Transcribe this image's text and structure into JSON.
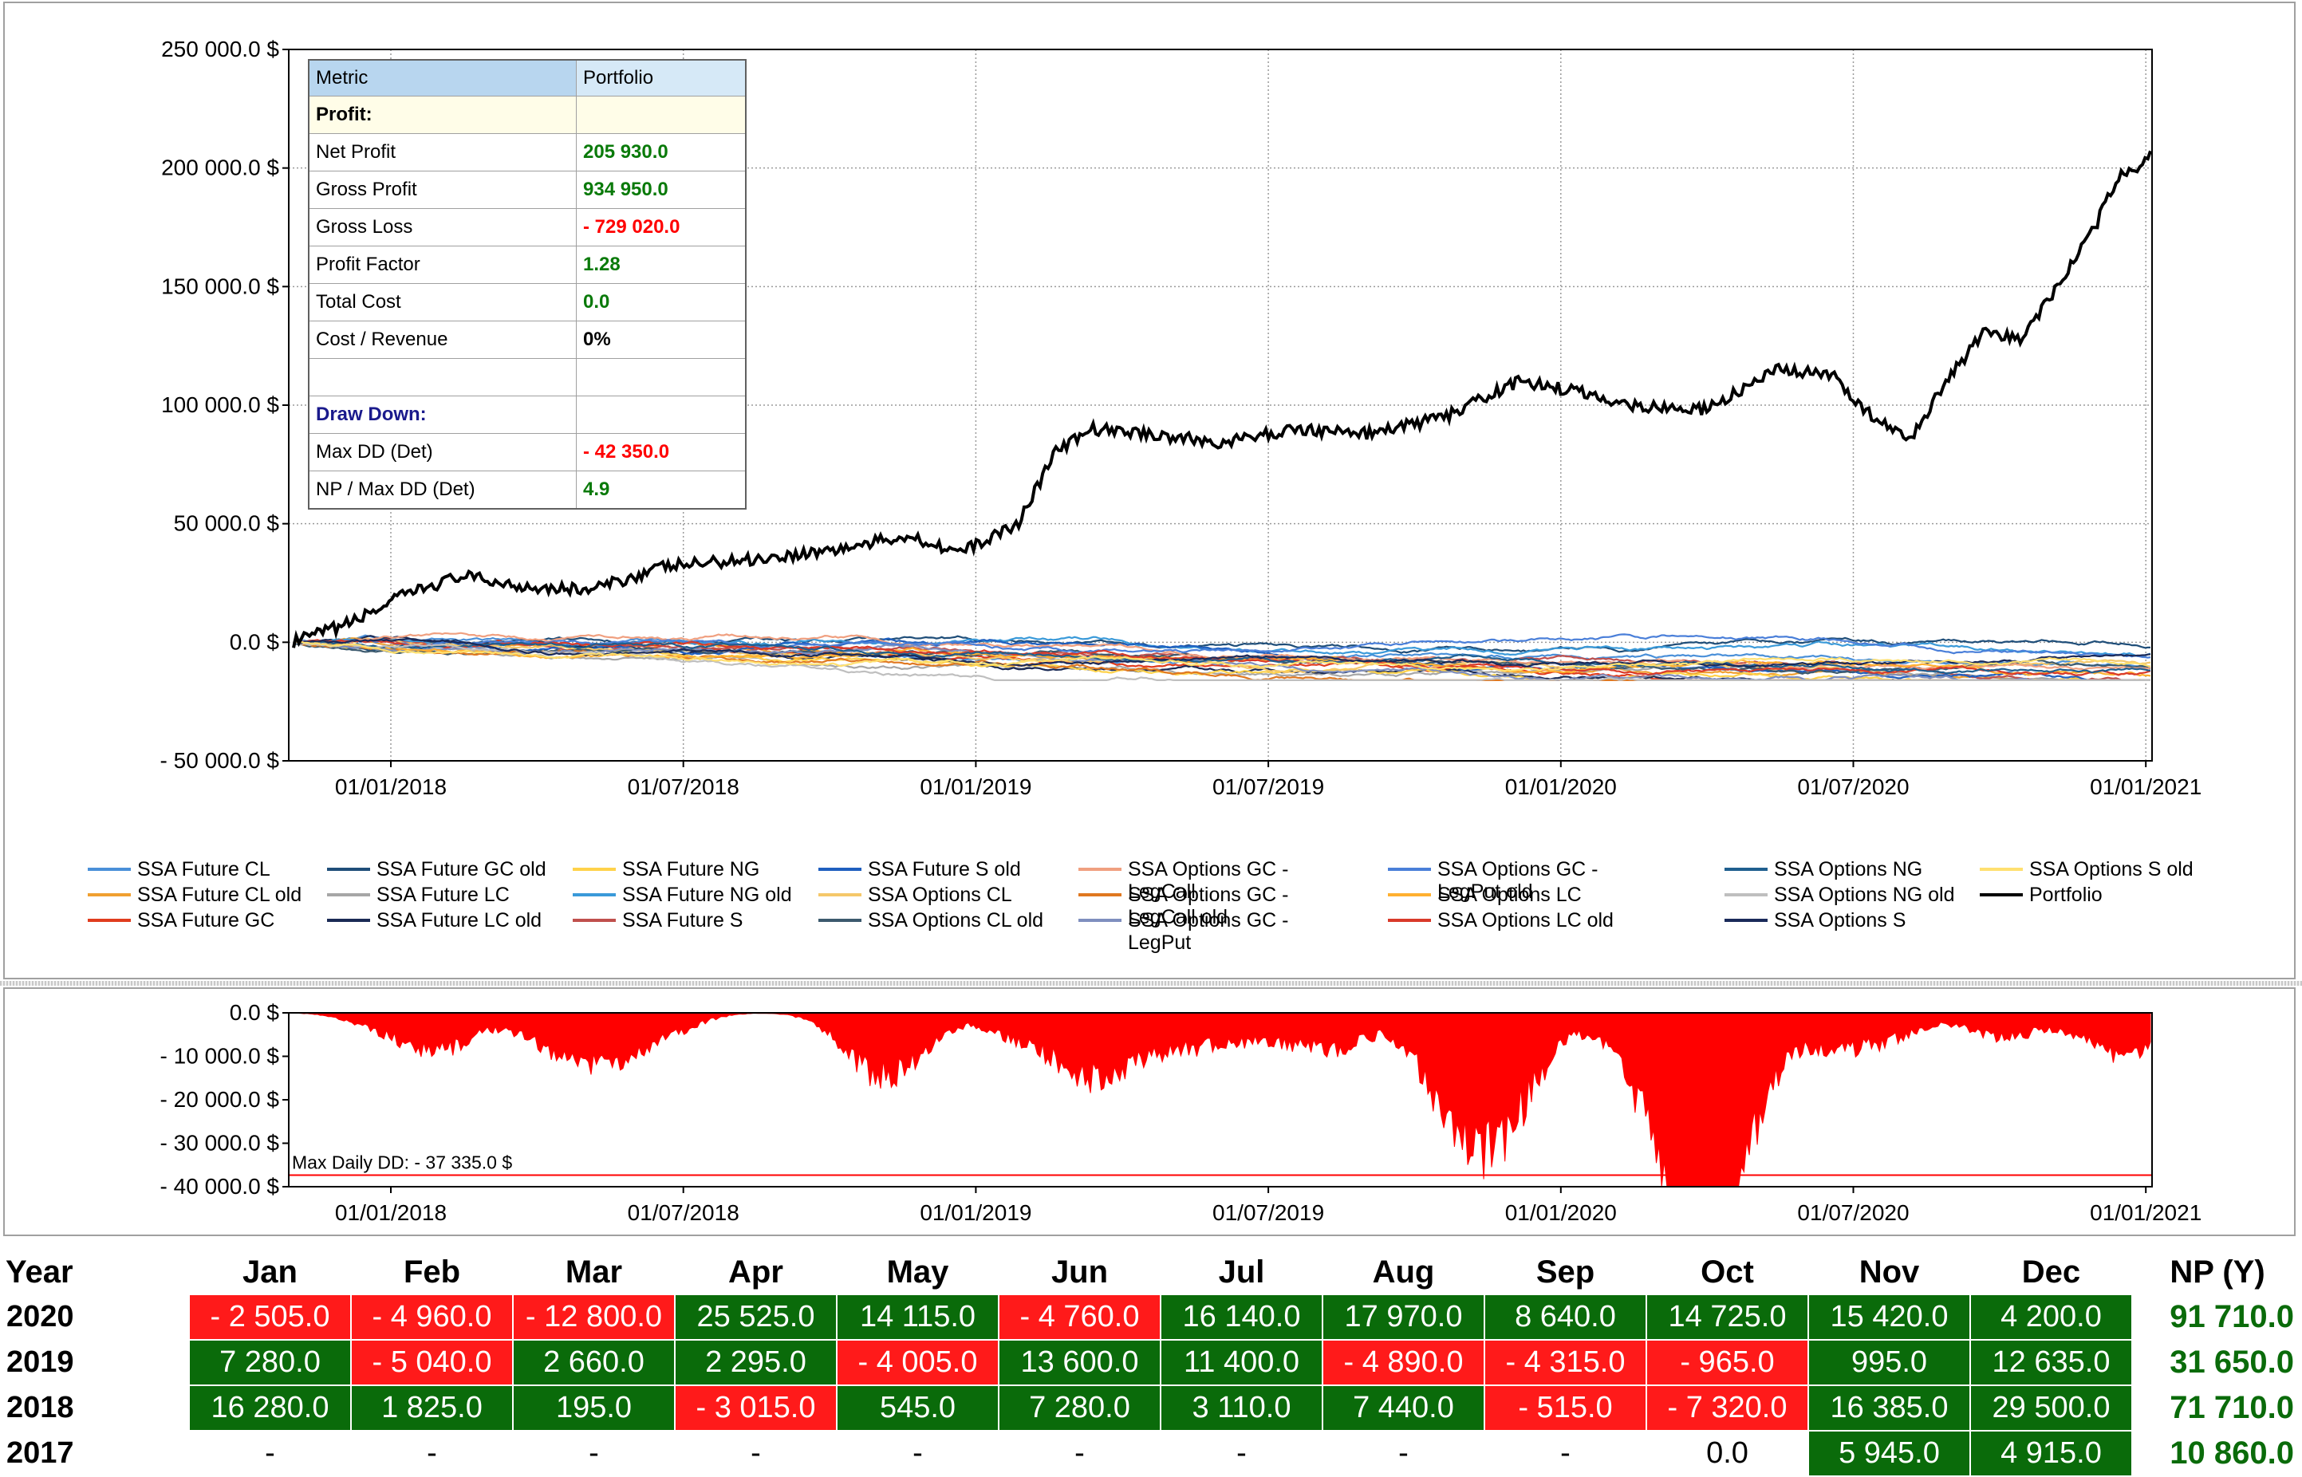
{
  "equity_chart": {
    "y_ticks": [
      "250 000.0 $",
      "200 000.0 $",
      "150 000.0 $",
      "100 000.0 $",
      "50 000.0 $",
      "0.0 $",
      "- 50 000.0 $"
    ],
    "x_ticks": [
      "01/01/2018",
      "01/07/2018",
      "01/01/2019",
      "01/07/2019",
      "01/01/2020",
      "01/07/2020",
      "01/01/2021"
    ]
  },
  "metrics": {
    "header": {
      "metric": "Metric",
      "portfolio": "Portfolio"
    },
    "profit_section": "Profit:",
    "rows": [
      {
        "label": "Net Profit",
        "value": "205 930.0",
        "tone": "pos"
      },
      {
        "label": "Gross Profit",
        "value": "934 950.0",
        "tone": "pos"
      },
      {
        "label": "Gross Loss",
        "value": "- 729 020.0",
        "tone": "neg"
      },
      {
        "label": "Profit Factor",
        "value": "1.28",
        "tone": "pos"
      },
      {
        "label": "Total Cost",
        "value": "0.0",
        "tone": "pos"
      },
      {
        "label": "Cost / Revenue",
        "value": "0%",
        "tone": "bk"
      }
    ],
    "dd_section": "Draw Down:",
    "dd_rows": [
      {
        "label": "Max DD (Det)",
        "value": "- 42 350.0",
        "tone": "neg"
      },
      {
        "label": "NP / Max DD (Det)",
        "value": "4.9",
        "tone": "pos"
      }
    ]
  },
  "legend": [
    {
      "name": "SSA Future CL",
      "color": "#4a90d9"
    },
    {
      "name": "SSA Future CL old",
      "color": "#f0a030"
    },
    {
      "name": "SSA Future GC",
      "color": "#e03c1e"
    },
    {
      "name": "SSA Future GC old",
      "color": "#1f4e79"
    },
    {
      "name": "SSA Future LC",
      "color": "#a6a6a6"
    },
    {
      "name": "SSA Future LC old",
      "color": "#1a2a55"
    },
    {
      "name": "SSA Future NG",
      "color": "#ffd24a"
    },
    {
      "name": "SSA Future NG old",
      "color": "#3a9ad9"
    },
    {
      "name": "SSA Future S",
      "color": "#c0504d"
    },
    {
      "name": "SSA Future S old",
      "color": "#1f5fbf"
    },
    {
      "name": "SSA Options CL",
      "color": "#f5c86a"
    },
    {
      "name": "SSA Options CL old",
      "color": "#3c5a6e"
    },
    {
      "name": "SSA Options GC - LegCall",
      "color": "#f0a080"
    },
    {
      "name": "SSA Options GC - LegCall old",
      "color": "#e07820"
    },
    {
      "name": "SSA Options GC - LegPut",
      "color": "#7f8fbf"
    },
    {
      "name": "SSA Options GC - LegPut old",
      "color": "#4a7fd9"
    },
    {
      "name": "SSA Options LC",
      "color": "#ffb030"
    },
    {
      "name": "SSA Options LC old",
      "color": "#d93a2a"
    },
    {
      "name": "SSA Options NG",
      "color": "#1f5f8f"
    },
    {
      "name": "SSA Options NG old",
      "color": "#bfbfbf"
    },
    {
      "name": "SSA Options S",
      "color": "#1a2a5a"
    },
    {
      "name": "SSA Options S old",
      "color": "#ffe070"
    },
    {
      "name": "Portfolio",
      "color": "#000000"
    }
  ],
  "drawdown_chart": {
    "y_ticks": [
      "0.0 $",
      "- 10 000.0 $",
      "- 20 000.0 $",
      "- 30 000.0 $",
      "- 40 000.0 $"
    ],
    "x_ticks": [
      "01/01/2018",
      "01/07/2018",
      "01/01/2019",
      "01/07/2019",
      "01/01/2020",
      "01/07/2020",
      "01/01/2021"
    ],
    "max_label": "Max Daily DD: - 37 335.0 $",
    "max_value": -37335
  },
  "monthly": {
    "headers": [
      "Year",
      "Jan",
      "Feb",
      "Mar",
      "Apr",
      "May",
      "Jun",
      "Jul",
      "Aug",
      "Sep",
      "Oct",
      "Nov",
      "Dec",
      "NP (Y)"
    ],
    "rows": [
      {
        "year": "2020",
        "cells": [
          {
            "v": "- 2 505.0",
            "s": "r"
          },
          {
            "v": "- 4 960.0",
            "s": "r"
          },
          {
            "v": "- 12 800.0",
            "s": "r"
          },
          {
            "v": "25 525.0",
            "s": "g"
          },
          {
            "v": "14 115.0",
            "s": "g"
          },
          {
            "v": "- 4 760.0",
            "s": "r"
          },
          {
            "v": "16 140.0",
            "s": "g"
          },
          {
            "v": "17 970.0",
            "s": "g"
          },
          {
            "v": "8 640.0",
            "s": "g"
          },
          {
            "v": "14 725.0",
            "s": "g"
          },
          {
            "v": "15 420.0",
            "s": "g"
          },
          {
            "v": "4 200.0",
            "s": "g"
          }
        ],
        "total": "91 710.0"
      },
      {
        "year": "2019",
        "cells": [
          {
            "v": "7 280.0",
            "s": "g"
          },
          {
            "v": "- 5 040.0",
            "s": "r"
          },
          {
            "v": "2 660.0",
            "s": "g"
          },
          {
            "v": "2 295.0",
            "s": "g"
          },
          {
            "v": "- 4 005.0",
            "s": "r"
          },
          {
            "v": "13 600.0",
            "s": "g"
          },
          {
            "v": "11 400.0",
            "s": "g"
          },
          {
            "v": "- 4 890.0",
            "s": "r"
          },
          {
            "v": "- 4 315.0",
            "s": "r"
          },
          {
            "v": "- 965.0",
            "s": "r"
          },
          {
            "v": "995.0",
            "s": "g"
          },
          {
            "v": "12 635.0",
            "s": "g"
          }
        ],
        "total": "31 650.0"
      },
      {
        "year": "2018",
        "cells": [
          {
            "v": "16 280.0",
            "s": "g"
          },
          {
            "v": "1 825.0",
            "s": "g"
          },
          {
            "v": "195.0",
            "s": "g"
          },
          {
            "v": "- 3 015.0",
            "s": "r"
          },
          {
            "v": "545.0",
            "s": "g"
          },
          {
            "v": "7 280.0",
            "s": "g"
          },
          {
            "v": "3 110.0",
            "s": "g"
          },
          {
            "v": "7 440.0",
            "s": "g"
          },
          {
            "v": "- 515.0",
            "s": "r"
          },
          {
            "v": "- 7 320.0",
            "s": "r"
          },
          {
            "v": "16 385.0",
            "s": "g"
          },
          {
            "v": "29 500.0",
            "s": "g"
          }
        ],
        "total": "71 710.0"
      },
      {
        "year": "2017",
        "cells": [
          {
            "v": "-",
            "s": "n"
          },
          {
            "v": "-",
            "s": "n"
          },
          {
            "v": "-",
            "s": "n"
          },
          {
            "v": "-",
            "s": "n"
          },
          {
            "v": "-",
            "s": "n"
          },
          {
            "v": "-",
            "s": "n"
          },
          {
            "v": "-",
            "s": "n"
          },
          {
            "v": "-",
            "s": "n"
          },
          {
            "v": "-",
            "s": "n"
          },
          {
            "v": "0.0",
            "s": "n"
          },
          {
            "v": "5 945.0",
            "s": "g"
          },
          {
            "v": "4 915.0",
            "s": "g"
          }
        ],
        "total": "10 860.0"
      }
    ]
  }
}
